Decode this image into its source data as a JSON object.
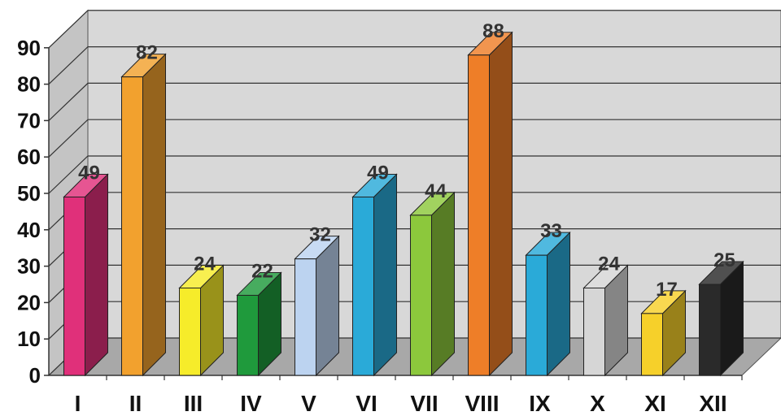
{
  "chart_data": {
    "type": "bar",
    "title": "",
    "xlabel": "",
    "ylabel": "",
    "ylim": [
      0,
      90
    ],
    "y_ticks": [
      0,
      10,
      20,
      30,
      40,
      50,
      60,
      70,
      80,
      90
    ],
    "grid": true,
    "legend": "none",
    "categories": [
      "I",
      "II",
      "III",
      "IV",
      "V",
      "VI",
      "VII",
      "VIII",
      "IX",
      "X",
      "XI",
      "XII"
    ],
    "values": [
      49,
      82,
      24,
      22,
      32,
      49,
      44,
      88,
      33,
      24,
      17,
      25
    ],
    "data_labels": [
      "49",
      "82",
      "24",
      "22",
      "32",
      "49",
      "44",
      "88",
      "33",
      "24",
      "17",
      "25"
    ],
    "colors": [
      "#e0307a",
      "#f2a12e",
      "#f6ec2a",
      "#1f9a3c",
      "#bcd3f0",
      "#2aaad8",
      "#8cc83c",
      "#ee7e28",
      "#2aaad8",
      "#d6d6d6",
      "#f6d02a",
      "#2a2a2a"
    ],
    "wall_color": "#d8d8d8",
    "floor_color": "#a8a8a8"
  }
}
